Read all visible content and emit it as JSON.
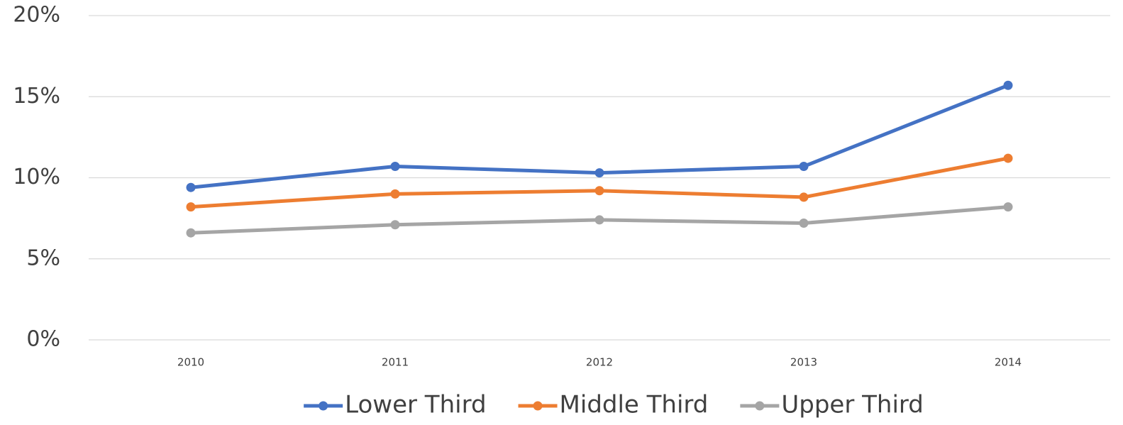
{
  "chart_data": {
    "type": "line",
    "categories": [
      "2010",
      "2011",
      "2012",
      "2013",
      "2014"
    ],
    "series": [
      {
        "name": "Lower Third",
        "color": "#4472c4",
        "values": [
          9.4,
          10.7,
          10.3,
          10.7,
          15.7
        ]
      },
      {
        "name": "Middle Third",
        "color": "#ed7d31",
        "values": [
          8.2,
          9.0,
          9.2,
          8.8,
          11.2
        ]
      },
      {
        "name": "Upper Third",
        "color": "#a5a5a5",
        "values": [
          6.6,
          7.1,
          7.4,
          7.2,
          8.2
        ]
      }
    ],
    "ylim": [
      0,
      20
    ],
    "yticks": [
      {
        "value": 0,
        "label": "0%"
      },
      {
        "value": 5,
        "label": "5%"
      },
      {
        "value": 10,
        "label": "10%"
      },
      {
        "value": 15,
        "label": "15%"
      },
      {
        "value": 20,
        "label": "20%"
      }
    ],
    "grid": true,
    "legend": "bottom"
  }
}
